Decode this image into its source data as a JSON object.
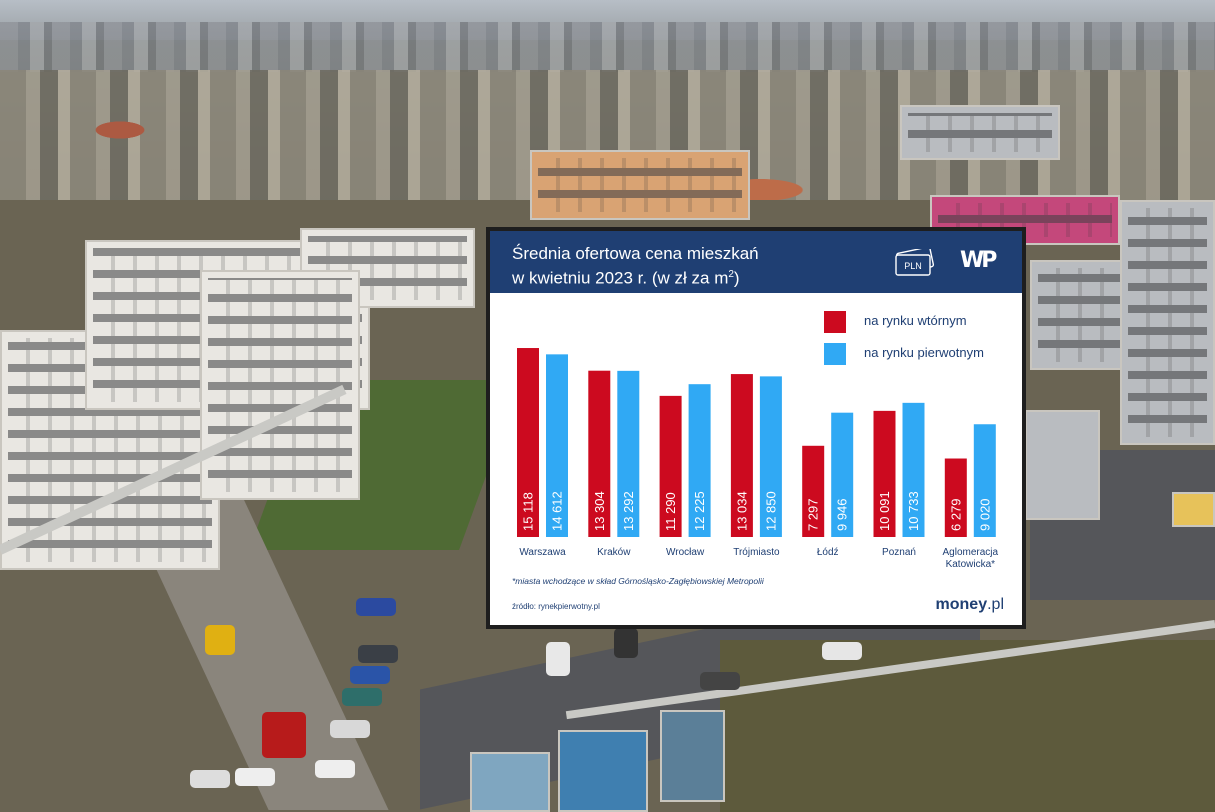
{
  "card": {
    "title_line1": "Średnia ofertowa cena mieszkań",
    "title_line2_prefix": "w kwietniu 2023 r. (w zł za m",
    "title_line2_sup": "2",
    "title_line2_suffix": ")",
    "pln_badge": "PLN",
    "logo": "WP",
    "footnote": "*miasta wchodzące w skład Górnośląsko-Zagłębiowskiej Metropolii",
    "source": "źródło: rynekpierwotny.pl",
    "brand": "money",
    "brand_suffix": ".pl"
  },
  "colors": {
    "header_bg": "#1f3f73",
    "secondary_market": "#cc0a1f",
    "primary_market": "#30a9f4",
    "text": "#1f3f73"
  },
  "chart_data": {
    "type": "bar",
    "title": "Średnia ofertowa cena mieszkań w kwietniu 2023 r. (w zł za m2)",
    "xlabel": "",
    "ylabel": "",
    "ylim": [
      0,
      16000
    ],
    "grid": false,
    "legend_position": "top-right",
    "categories": [
      "Warszawa",
      "Kraków",
      "Wrocław",
      "Trójmiasto",
      "Łódź",
      "Poznań",
      "Aglomeracja Katowicka*"
    ],
    "category_lines": [
      [
        "Warszawa"
      ],
      [
        "Kraków"
      ],
      [
        "Wrocław"
      ],
      [
        "Trójmiasto"
      ],
      [
        "Łódź"
      ],
      [
        "Poznań"
      ],
      [
        "Aglomeracja",
        "Katowicka*"
      ]
    ],
    "series": [
      {
        "name": "na rynku wtórnym",
        "values": [
          15118,
          13304,
          11290,
          13034,
          7297,
          10091,
          6279
        ],
        "labels": [
          "15 118",
          "13 304",
          "11 290",
          "13 034",
          "7 297",
          "10 091",
          "6 279"
        ]
      },
      {
        "name": "na rynku pierwotnym",
        "values": [
          14612,
          13292,
          12225,
          12850,
          9946,
          10733,
          9020
        ],
        "labels": [
          "14 612",
          "13 292",
          "12 225",
          "12 850",
          "9 946",
          "10 733",
          "9 020"
        ]
      }
    ]
  }
}
